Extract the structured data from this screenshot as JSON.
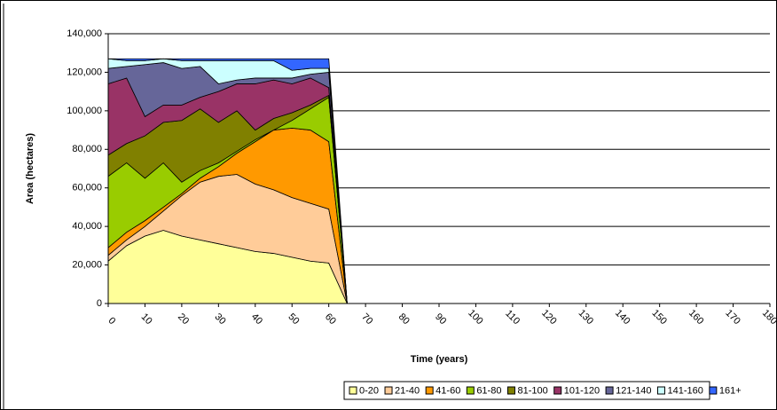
{
  "chart_data": {
    "type": "stacked_area",
    "x_label": "Time (years)",
    "y_label": "Area (hectares)",
    "x": [
      0,
      5,
      10,
      15,
      20,
      25,
      30,
      35,
      40,
      45,
      50,
      55,
      60,
      65
    ],
    "series": [
      {
        "name": "0-20",
        "color": "#ffff99",
        "values": [
          22000,
          30000,
          35000,
          38000,
          35000,
          33000,
          31000,
          29000,
          27000,
          26000,
          24000,
          22000,
          21000,
          0
        ]
      },
      {
        "name": "21-40",
        "color": "#ffcc99",
        "values": [
          3000,
          3000,
          5000,
          10000,
          21000,
          30000,
          35000,
          38000,
          35000,
          33000,
          31000,
          30000,
          28000,
          0
        ]
      },
      {
        "name": "41-60",
        "color": "#ff9900",
        "values": [
          4000,
          4000,
          3000,
          2000,
          1000,
          2000,
          5000,
          11000,
          22000,
          31000,
          36000,
          38000,
          35000,
          0
        ]
      },
      {
        "name": "61-80",
        "color": "#99cc00",
        "values": [
          37000,
          36000,
          22000,
          23000,
          6000,
          4000,
          2000,
          1000,
          1000,
          0,
          4000,
          11000,
          23000,
          0
        ]
      },
      {
        "name": "81-100",
        "color": "#808000",
        "values": [
          11000,
          10000,
          22000,
          21000,
          32000,
          32000,
          21000,
          21000,
          5000,
          6000,
          4000,
          2000,
          1000,
          0
        ]
      },
      {
        "name": "101-120",
        "color": "#993366",
        "values": [
          37000,
          34000,
          10000,
          9000,
          8000,
          6000,
          16000,
          14000,
          24000,
          20000,
          15000,
          14000,
          4000,
          0
        ]
      },
      {
        "name": "121-140",
        "color": "#666699",
        "values": [
          8000,
          6000,
          27000,
          22000,
          19000,
          16000,
          4000,
          2000,
          3000,
          1000,
          3000,
          2000,
          8000,
          0
        ]
      },
      {
        "name": "141-160",
        "color": "#ccffff",
        "values": [
          5000,
          3000,
          2000,
          2000,
          4000,
          3000,
          12000,
          10000,
          9000,
          9000,
          4000,
          3000,
          2000,
          0
        ]
      },
      {
        "name": "161+",
        "color": "#3366ff",
        "values": [
          0,
          1000,
          1000,
          0,
          1000,
          1000,
          1000,
          1000,
          1000,
          1000,
          6000,
          5000,
          5000,
          0
        ]
      }
    ],
    "xlim": [
      0,
      180
    ],
    "xticks": [
      0,
      10,
      20,
      30,
      40,
      50,
      60,
      70,
      80,
      90,
      100,
      110,
      120,
      130,
      140,
      150,
      160,
      170,
      180
    ],
    "ylim": [
      0,
      140000
    ],
    "yticks": [
      0,
      {
        "value": 20000,
        "label": "20,000"
      },
      {
        "value": 40000,
        "label": "40,000"
      },
      {
        "value": 60000,
        "label": "60,000"
      },
      {
        "value": 80000,
        "label": "80,000"
      },
      {
        "value": 100000,
        "label": "100,000"
      },
      {
        "value": 120000,
        "label": "120,000"
      },
      {
        "value": 140000,
        "label": "140,000"
      }
    ],
    "grid": true,
    "legend": "bottom"
  }
}
